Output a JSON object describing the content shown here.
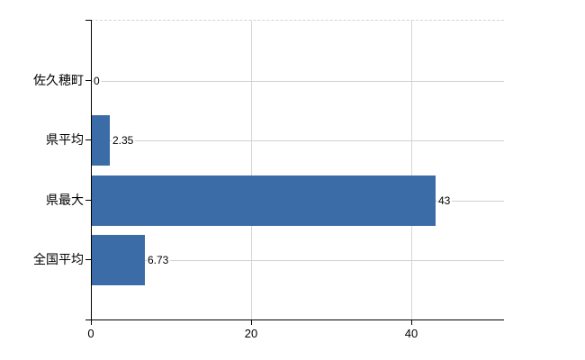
{
  "chart_data": {
    "type": "bar",
    "orientation": "horizontal",
    "title": "",
    "categories": [
      "佐久穂町",
      "県平均",
      "県最大",
      "全国平均"
    ],
    "values": [
      0,
      2.35,
      43,
      6.73
    ],
    "value_labels": [
      "0",
      "2.35",
      "43",
      "6.73"
    ],
    "x_ticks": [
      0,
      20,
      40
    ],
    "x_tick_labels": [
      "0",
      "20",
      "40"
    ],
    "xlim": [
      0,
      51.57
    ],
    "grid": true,
    "legend": false,
    "bar_color": "#3c6ca8",
    "h_grid_color": "#ccd5cc",
    "v_grid_color": "#d8d5d2",
    "axis_color": "#000000",
    "background": "#ffffff"
  }
}
